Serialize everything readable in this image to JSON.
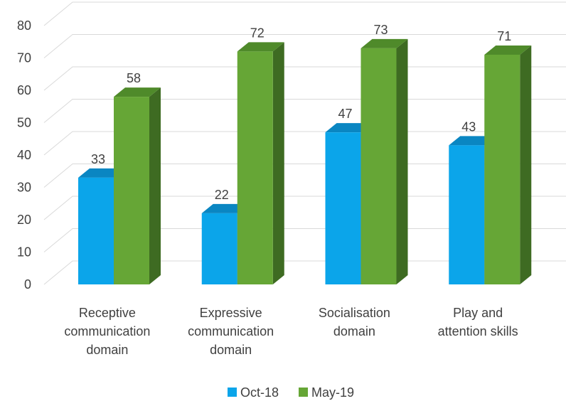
{
  "chart_data": {
    "type": "bar",
    "title": "",
    "xlabel": "",
    "ylabel": "",
    "ylim": [
      0,
      80
    ],
    "yticks": [
      0,
      10,
      20,
      30,
      40,
      50,
      60,
      70,
      80
    ],
    "grid": true,
    "three_d": true,
    "legend_position": "bottom",
    "categories": [
      [
        "Receptive",
        "communication",
        "domain"
      ],
      [
        "Expressive",
        "communication",
        "domain"
      ],
      [
        "Socialisation",
        "domain"
      ],
      [
        "Play and",
        "attention skills"
      ]
    ],
    "series": [
      {
        "name": "Oct-18",
        "color": "#0ba5ea",
        "top_color": "#0a86c2",
        "side_color": "#077cb8",
        "values": [
          33,
          22,
          47,
          43
        ]
      },
      {
        "name": "May-19",
        "color": "#66a636",
        "top_color": "#4f8a2a",
        "side_color": "#3e6b22",
        "values": [
          58,
          72,
          73,
          71
        ]
      }
    ]
  }
}
